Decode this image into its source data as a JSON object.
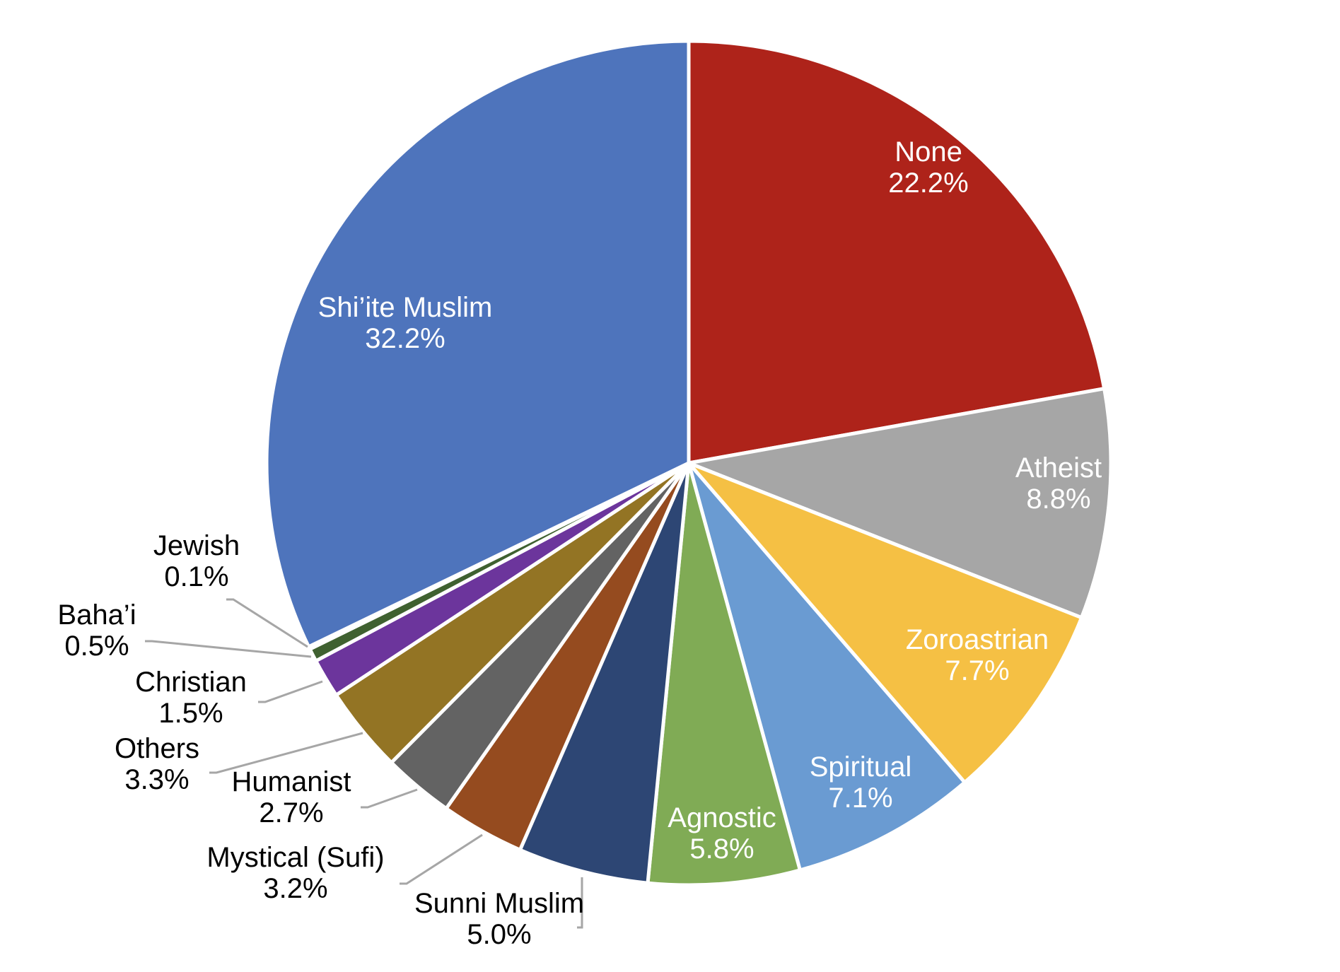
{
  "chart_data": {
    "type": "pie",
    "start_angle_deg": 0,
    "direction": "clockwise",
    "slices": [
      {
        "label": "None",
        "value_label": "22.2%",
        "value": 22.2,
        "color": "#ae231a"
      },
      {
        "label": "Atheist",
        "value_label": "8.8%",
        "value": 8.8,
        "color": "#a6a6a6"
      },
      {
        "label": "Zoroastrian",
        "value_label": "7.7%",
        "value": 7.7,
        "color": "#f5c044"
      },
      {
        "label": "Spiritual",
        "value_label": "7.1%",
        "value": 7.1,
        "color": "#6a9bd2"
      },
      {
        "label": "Agnostic",
        "value_label": "5.8%",
        "value": 5.8,
        "color": "#80ab55"
      },
      {
        "label": "Sunni Muslim",
        "value_label": "5.0%",
        "value": 5.0,
        "color": "#2d4674"
      },
      {
        "label": "Mystical (Sufi)",
        "value_label": "3.2%",
        "value": 3.2,
        "color": "#954b1f"
      },
      {
        "label": "Humanist",
        "value_label": "2.7%",
        "value": 2.7,
        "color": "#636363"
      },
      {
        "label": "Others",
        "value_label": "3.3%",
        "value": 3.3,
        "color": "#937424"
      },
      {
        "label": "Christian",
        "value_label": "1.5%",
        "value": 1.5,
        "color": "#6c359c"
      },
      {
        "label": "Baha’i",
        "value_label": "0.5%",
        "value": 0.5,
        "color": "#3f6130"
      },
      {
        "label": "Jewish",
        "value_label": "0.1%",
        "value": 0.1,
        "color": "#bdd3ec"
      },
      {
        "label": "Shi’ite Muslim",
        "value_label": "32.2%",
        "value": 32.2,
        "color": "#4e74bc"
      }
    ]
  }
}
